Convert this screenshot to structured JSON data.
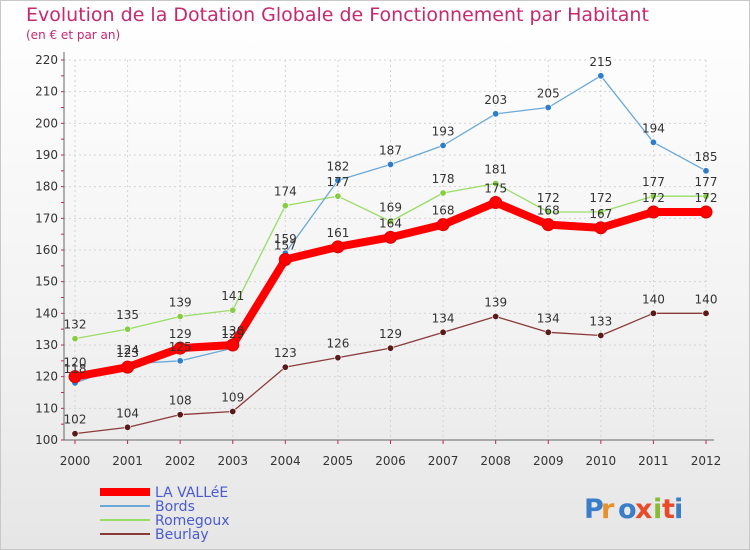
{
  "title": "Evolution de la Dotation Globale de Fonctionnement par Habitant",
  "subtitle": "(en € et par an)",
  "logo": "Proxiti",
  "chart_data": {
    "type": "line",
    "title": "Evolution de la Dotation Globale de Fonctionnement par Habitant",
    "subtitle": "(en € et par an)",
    "xlabel": "",
    "ylabel": "",
    "x": [
      "2000",
      "2001",
      "2002",
      "2003",
      "2004",
      "2005",
      "2006",
      "2007",
      "2008",
      "2009",
      "2010",
      "2011",
      "2012"
    ],
    "ylim": [
      100,
      220
    ],
    "yticks": [
      100,
      110,
      120,
      130,
      140,
      150,
      160,
      170,
      180,
      190,
      200,
      210,
      220
    ],
    "grid": true,
    "legend": "bottom-left",
    "series": [
      {
        "name": "LA VALLéE",
        "color": "#ff0000",
        "values": [
          120,
          123,
          129,
          130,
          157,
          161,
          164,
          168,
          175,
          168,
          167,
          172,
          172
        ]
      },
      {
        "name": "Bords",
        "color": "#6aa8d8",
        "values": [
          118,
          124,
          125,
          129,
          159,
          182,
          187,
          193,
          203,
          205,
          215,
          194,
          185
        ]
      },
      {
        "name": "Romegoux",
        "color": "#99dd66",
        "values": [
          132,
          135,
          139,
          141,
          174,
          177,
          169,
          178,
          181,
          172,
          172,
          177,
          177
        ]
      },
      {
        "name": "Beurlay",
        "color": "#7a3030",
        "values": [
          102,
          104,
          108,
          109,
          123,
          126,
          129,
          134,
          139,
          134,
          133,
          140,
          140
        ]
      }
    ]
  }
}
